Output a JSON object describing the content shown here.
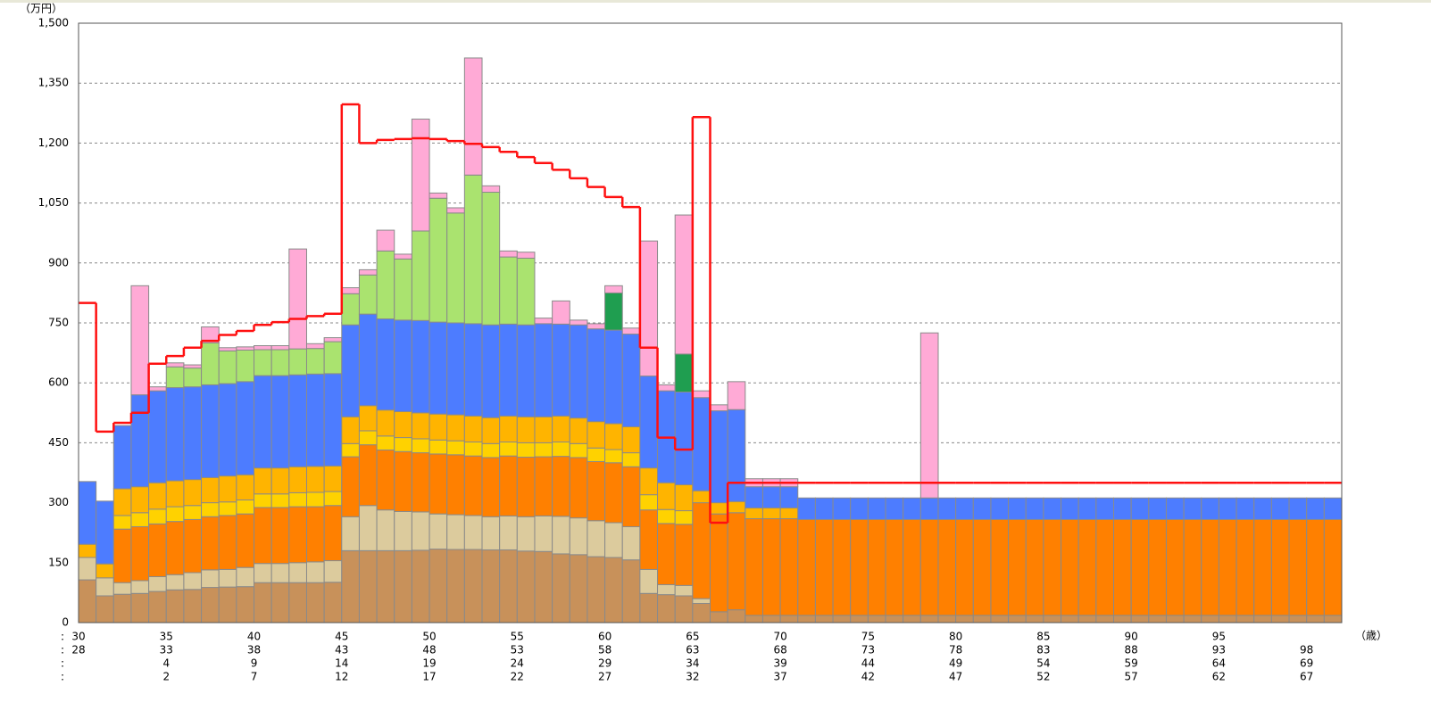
{
  "chart_data": {
    "type": "stacked_bar",
    "y_unit": "（万円）",
    "x_unit": "（歳）",
    "row_marker": ":",
    "ylim": [
      0,
      1500
    ],
    "yticks": [
      0,
      150,
      300,
      450,
      600,
      750,
      900,
      {
        "value": 1050,
        "label": "1,050"
      },
      {
        "value": 1200,
        "label": "1,200"
      },
      {
        "value": 1350,
        "label": "1,350"
      },
      {
        "value": 1500,
        "label": "1,500"
      }
    ],
    "grid": true,
    "categories": [
      [
        "30",
        "28",
        null,
        null
      ],
      null,
      null,
      null,
      null,
      [
        "35",
        "33",
        "4",
        "2"
      ],
      null,
      null,
      null,
      null,
      [
        "40",
        "38",
        "9",
        "7"
      ],
      null,
      null,
      null,
      null,
      [
        "45",
        "43",
        "14",
        "12"
      ],
      null,
      null,
      null,
      null,
      [
        "50",
        "48",
        "19",
        "17"
      ],
      null,
      null,
      null,
      null,
      [
        "55",
        "53",
        "24",
        "22"
      ],
      null,
      null,
      null,
      null,
      [
        "60",
        "58",
        "29",
        "27"
      ],
      null,
      null,
      null,
      null,
      [
        "65",
        "63",
        "34",
        "32"
      ],
      null,
      null,
      null,
      null,
      [
        "70",
        "68",
        "39",
        "37"
      ],
      null,
      null,
      null,
      null,
      [
        "75",
        "73",
        "44",
        "42"
      ],
      null,
      null,
      null,
      null,
      [
        "80",
        "78",
        "49",
        "47"
      ],
      null,
      null,
      null,
      null,
      [
        "85",
        "83",
        "54",
        "52"
      ],
      null,
      null,
      null,
      null,
      [
        "90",
        "88",
        "59",
        "57"
      ],
      null,
      null,
      null,
      null,
      [
        "95",
        "93",
        "64",
        "62"
      ],
      null,
      null,
      null,
      null,
      [
        null,
        "98",
        "69",
        "67"
      ],
      null
    ],
    "series": [
      {
        "color": "#c8915a",
        "values": [
          107,
          67,
          71,
          73,
          78,
          82,
          83,
          88,
          89,
          90,
          100,
          100,
          100,
          100,
          101,
          180,
          180,
          180,
          180,
          181,
          184,
          183,
          183,
          182,
          182,
          179,
          178,
          172,
          170,
          165,
          163,
          157,
          73,
          70,
          67,
          48,
          27,
          32,
          18,
          18,
          18,
          18,
          18,
          18,
          18,
          18,
          18,
          18,
          18,
          18,
          18,
          18,
          18,
          18,
          18,
          18,
          18,
          18,
          18,
          18,
          18,
          18,
          18,
          18,
          18,
          18,
          18,
          18,
          18,
          18,
          18,
          18
        ]
      },
      {
        "color": "#dccb9d",
        "values": [
          56,
          45,
          29,
          32,
          37,
          38,
          42,
          44,
          44,
          48,
          48,
          48,
          50,
          52,
          54,
          85,
          113,
          102,
          98,
          96,
          88,
          87,
          85,
          83,
          85,
          86,
          89,
          94,
          92,
          90,
          87,
          83,
          60,
          25,
          26,
          12,
          0,
          0,
          0,
          0,
          0,
          0,
          0,
          0,
          0,
          0,
          0,
          0,
          0,
          0,
          0,
          0,
          0,
          0,
          0,
          0,
          0,
          0,
          0,
          0,
          0,
          0,
          0,
          0,
          0,
          0,
          0,
          0,
          0,
          0,
          0,
          0
        ]
      },
      {
        "color": "#ff8000",
        "values": [
          0,
          0,
          134,
          135,
          132,
          133,
          133,
          133,
          135,
          134,
          140,
          140,
          140,
          138,
          138,
          150,
          152,
          150,
          150,
          148,
          150,
          150,
          149,
          148,
          150,
          149,
          148,
          150,
          151,
          148,
          150,
          150,
          149,
          153,
          153,
          240,
          245,
          243,
          242,
          242,
          242,
          240,
          240,
          240,
          240,
          240,
          240,
          240,
          240,
          240,
          240,
          240,
          240,
          240,
          240,
          240,
          240,
          240,
          240,
          240,
          240,
          240,
          240,
          240,
          240,
          240,
          240,
          240,
          240,
          240,
          240,
          240
        ]
      },
      {
        "color": "#ffd200",
        "values": [
          0,
          0,
          34,
          35,
          37,
          37,
          35,
          35,
          34,
          35,
          34,
          34,
          35,
          36,
          35,
          33,
          35,
          35,
          35,
          35,
          35,
          35,
          35,
          35,
          35,
          36,
          35,
          36,
          35,
          34,
          33,
          35,
          38,
          35,
          34,
          0,
          0,
          0,
          0,
          0,
          0,
          0,
          0,
          0,
          0,
          0,
          0,
          0,
          0,
          0,
          0,
          0,
          0,
          0,
          0,
          0,
          0,
          0,
          0,
          0,
          0,
          0,
          0,
          0,
          0,
          0,
          0,
          0,
          0,
          0,
          0,
          0
        ]
      },
      {
        "color": "#ffb400",
        "values": [
          33,
          35,
          67,
          65,
          66,
          65,
          65,
          63,
          65,
          63,
          65,
          65,
          65,
          65,
          64,
          67,
          63,
          65,
          65,
          65,
          65,
          65,
          65,
          65,
          65,
          65,
          65,
          65,
          64,
          66,
          65,
          65,
          67,
          67,
          65,
          30,
          28,
          28,
          27,
          27,
          27,
          0,
          0,
          0,
          0,
          0,
          0,
          0,
          0,
          0,
          0,
          0,
          0,
          0,
          0,
          0,
          0,
          0,
          0,
          0,
          0,
          0,
          0,
          0,
          0,
          0,
          0,
          0,
          0,
          0,
          0,
          0
        ]
      },
      {
        "color": "#4d7cff",
        "values": [
          157,
          157,
          158,
          230,
          230,
          233,
          232,
          232,
          231,
          233,
          231,
          231,
          230,
          231,
          231,
          230,
          229,
          228,
          229,
          231,
          230,
          230,
          231,
          232,
          230,
          230,
          233,
          230,
          233,
          232,
          234,
          232,
          230,
          230,
          232,
          233,
          230,
          230,
          53,
          53,
          53,
          54,
          54,
          54,
          54,
          54,
          54,
          54,
          54,
          54,
          54,
          54,
          54,
          54,
          54,
          54,
          54,
          54,
          54,
          54,
          54,
          54,
          54,
          54,
          54,
          54,
          54,
          54,
          54,
          54,
          54,
          54
        ]
      },
      {
        "color": "#aae36f",
        "values": [
          0,
          0,
          0,
          0,
          0,
          52,
          47,
          105,
          82,
          79,
          65,
          65,
          65,
          64,
          80,
          78,
          98,
          170,
          153,
          224,
          310,
          275,
          372,
          332,
          168,
          167,
          0,
          0,
          0,
          0,
          0,
          0,
          0,
          0,
          0,
          0,
          0,
          0,
          0,
          0,
          0,
          0,
          0,
          0,
          0,
          0,
          0,
          0,
          0,
          0,
          0,
          0,
          0,
          0,
          0,
          0,
          0,
          0,
          0,
          0,
          0,
          0,
          0,
          0,
          0,
          0,
          0,
          0,
          0,
          0,
          0,
          0
        ]
      },
      {
        "color": "#1f9e50",
        "values": [
          0,
          0,
          0,
          0,
          0,
          0,
          0,
          0,
          0,
          0,
          0,
          0,
          0,
          0,
          0,
          0,
          0,
          0,
          0,
          0,
          0,
          0,
          0,
          0,
          0,
          0,
          0,
          0,
          0,
          0,
          93,
          0,
          0,
          0,
          95,
          0,
          0,
          0,
          0,
          0,
          0,
          0,
          0,
          0,
          0,
          0,
          0,
          0,
          0,
          0,
          0,
          0,
          0,
          0,
          0,
          0,
          0,
          0,
          0,
          0,
          0,
          0,
          0,
          0,
          0,
          0,
          0,
          0,
          0,
          0,
          0,
          0
        ]
      },
      {
        "color": "#ffaad6",
        "values": [
          0,
          0,
          0,
          273,
          10,
          10,
          8,
          40,
          8,
          8,
          10,
          10,
          250,
          12,
          10,
          15,
          13,
          52,
          12,
          280,
          13,
          13,
          293,
          16,
          15,
          15,
          14,
          58,
          12,
          13,
          18,
          15,
          338,
          15,
          348,
          17,
          15,
          70,
          20,
          20,
          20,
          0,
          0,
          0,
          0,
          0,
          0,
          0,
          413,
          0,
          0,
          0,
          0,
          0,
          0,
          0,
          0,
          0,
          0,
          0,
          0,
          0,
          0,
          0,
          0,
          0,
          0,
          0,
          0,
          0,
          0,
          0
        ]
      }
    ],
    "line": {
      "color": "#ff1010",
      "values": [
        800,
        478,
        500,
        525,
        648,
        667,
        688,
        705,
        720,
        730,
        745,
        752,
        760,
        767,
        773,
        1297,
        1200,
        1208,
        1210,
        1212,
        1210,
        1205,
        1198,
        1190,
        1178,
        1165,
        1150,
        1133,
        1112,
        1090,
        1065,
        1040,
        688,
        463,
        433,
        1265,
        250,
        350,
        350,
        350,
        350,
        350,
        350,
        350,
        350,
        350,
        350,
        350,
        350,
        350,
        350,
        350,
        350,
        350,
        350,
        350,
        350,
        350,
        350,
        350,
        350,
        350,
        350,
        350,
        350,
        350,
        350,
        350,
        350,
        350,
        350,
        350
      ]
    }
  }
}
